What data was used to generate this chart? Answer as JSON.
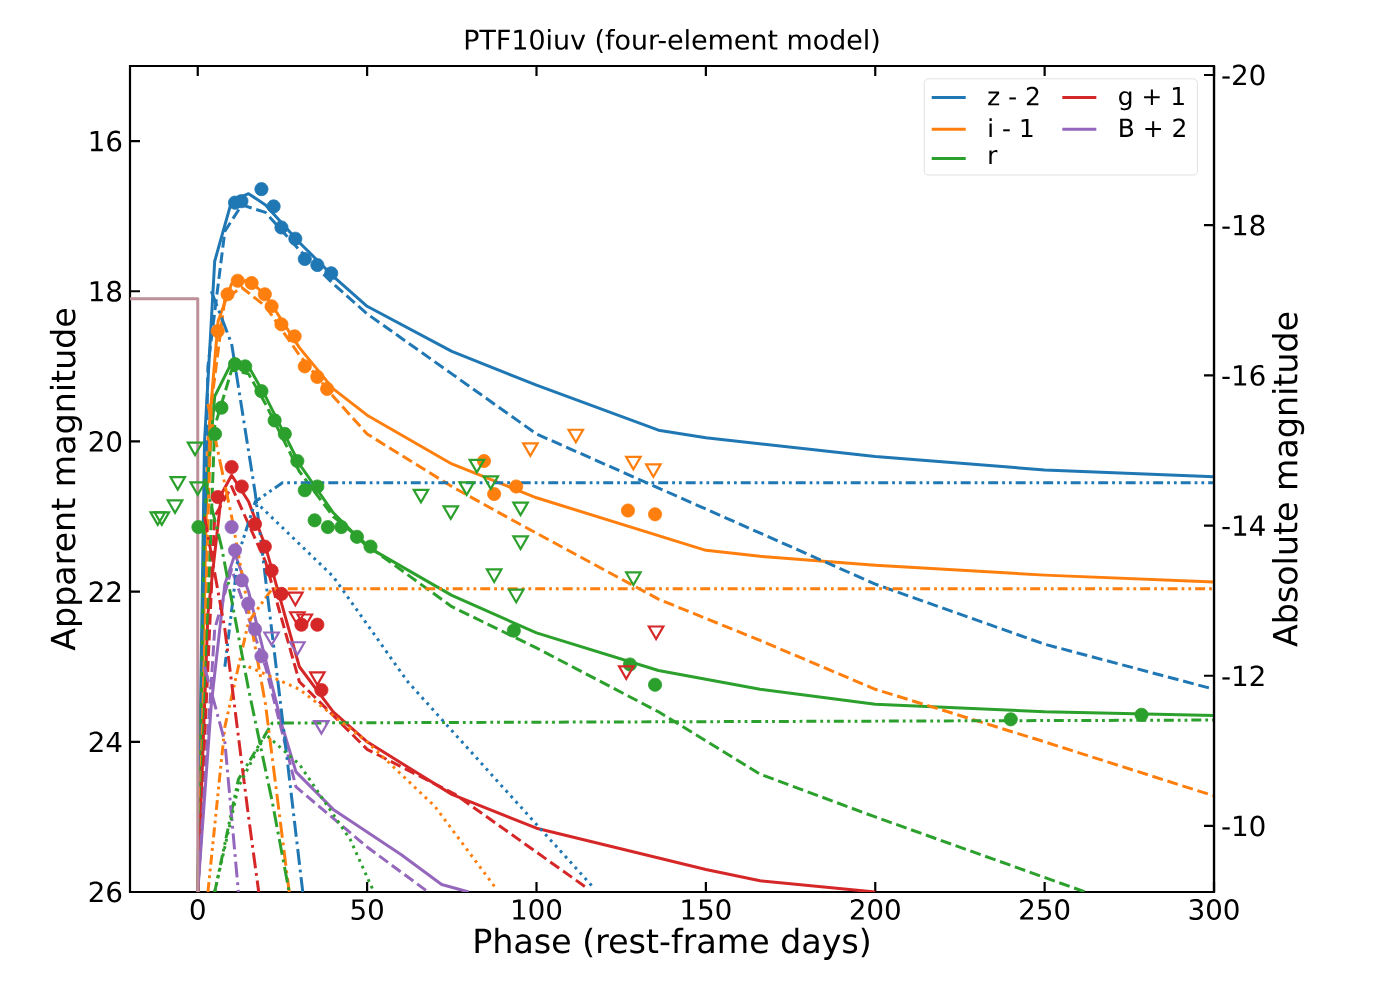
{
  "chart_data": {
    "type": "line",
    "title": "PTF10iuv (four-element model)",
    "xlabel": "Phase (rest-frame days)",
    "ylabel": "Apparent magnitude",
    "y2label": "Absolute magnitude",
    "xlim": [
      -20,
      300
    ],
    "xticks": [
      0,
      50,
      100,
      150,
      200,
      250,
      300
    ],
    "ylim": [
      26,
      15
    ],
    "yticks": [
      16,
      18,
      20,
      22,
      24,
      26
    ],
    "y2lim": [
      -9.12,
      -20.12
    ],
    "y2ticks": [
      -20,
      -18,
      -16,
      -14,
      -12,
      -10
    ],
    "legend": "top right",
    "grid": false,
    "series": [
      {
        "name": "z - 2",
        "line_style": "solid",
        "color": "#1f77b4",
        "x": [
          0,
          2,
          5,
          10,
          15,
          20,
          30,
          40,
          50,
          75,
          100,
          136,
          150,
          200,
          250,
          300
        ],
        "values": [
          26,
          20,
          17.6,
          16.8,
          16.7,
          16.85,
          17.35,
          17.8,
          18.2,
          18.8,
          19.25,
          19.85,
          19.95,
          20.2,
          20.38,
          20.47
        ]
      },
      {
        "name": "i - 1",
        "line_style": "solid",
        "color": "#ff7f0e",
        "x": [
          0,
          3,
          6,
          10,
          15,
          20,
          30,
          40,
          50,
          75,
          100,
          150,
          166,
          200,
          250,
          300
        ],
        "values": [
          26,
          20,
          18.4,
          17.9,
          17.85,
          18.05,
          18.75,
          19.3,
          19.65,
          20.3,
          20.75,
          21.45,
          21.53,
          21.65,
          21.78,
          21.87
        ]
      },
      {
        "name": "r",
        "line_style": "solid",
        "color": "#2ca02c",
        "x": [
          0,
          2,
          5,
          10,
          15,
          20,
          30,
          40,
          50,
          75,
          100,
          136,
          166,
          200,
          250,
          300
        ],
        "values": [
          26,
          21,
          19.4,
          18.95,
          19.0,
          19.4,
          20.3,
          20.95,
          21.4,
          22.05,
          22.55,
          23.05,
          23.3,
          23.5,
          23.6,
          23.65
        ]
      },
      {
        "name": "g + 1",
        "line_style": "solid",
        "color": "#d62728",
        "x": [
          0,
          3,
          7,
          10,
          15,
          20,
          25,
          30,
          40,
          50,
          75,
          100,
          150,
          166,
          200
        ],
        "values": [
          26,
          22.3,
          20.7,
          20.45,
          20.8,
          21.4,
          22.2,
          23.0,
          23.6,
          24.0,
          24.7,
          25.15,
          25.7,
          25.85,
          26.0
        ]
      },
      {
        "name": "B + 2",
        "line_style": "solid",
        "color": "#9467bd",
        "x": [
          0,
          4,
          8,
          11,
          15,
          20,
          25,
          29,
          40,
          60,
          72,
          80
        ],
        "values": [
          26,
          23.5,
          21.9,
          21.5,
          22.0,
          22.9,
          23.8,
          24.4,
          24.9,
          25.5,
          25.9,
          26
        ]
      },
      {
        "type": "line",
        "line_style": "dashed",
        "color": "#1f77b4",
        "x": [
          0,
          3,
          8,
          13,
          20,
          30,
          40,
          50,
          75,
          100,
          150,
          200,
          250,
          300
        ],
        "values": [
          26,
          19,
          17.2,
          16.85,
          16.95,
          17.45,
          17.9,
          18.3,
          19.1,
          19.9,
          20.9,
          21.9,
          22.7,
          23.3
        ]
      },
      {
        "type": "line",
        "line_style": "dashed",
        "color": "#ff7f0e",
        "x": [
          0,
          4,
          8,
          13,
          20,
          30,
          40,
          50,
          75,
          95,
          136,
          166,
          200,
          250,
          300
        ],
        "values": [
          26,
          19.5,
          18.1,
          17.95,
          18.2,
          18.85,
          19.4,
          19.9,
          20.6,
          21.1,
          22.1,
          22.65,
          23.3,
          24.0,
          24.72
        ]
      },
      {
        "type": "line",
        "line_style": "dashed",
        "color": "#2ca02c",
        "x": [
          0,
          5,
          10,
          15,
          20,
          30,
          40,
          52,
          75,
          100,
          136,
          166,
          200,
          262
        ],
        "values": [
          26,
          19.8,
          19.05,
          19.1,
          19.5,
          20.4,
          21.0,
          21.45,
          22.2,
          22.75,
          23.6,
          24.43,
          25.0,
          26
        ]
      },
      {
        "type": "line",
        "line_style": "dashed",
        "color": "#d62728",
        "x": [
          0,
          5,
          10,
          20,
          30,
          50,
          76,
          115
        ],
        "values": [
          26,
          21,
          20.6,
          21.6,
          23.2,
          24.1,
          24.7,
          25.95
        ]
      },
      {
        "type": "line",
        "line_style": "dashed",
        "color": "#9467bd",
        "x": [
          0,
          5,
          10,
          20,
          29,
          50,
          68
        ],
        "values": [
          26,
          22.5,
          21.7,
          23.0,
          24.6,
          25.4,
          26
        ]
      },
      {
        "type": "line",
        "line_style": "dashdotdot",
        "color": "#1f77b4",
        "x": [
          8,
          12,
          17,
          25,
          300
        ],
        "values": [
          23.0,
          21.5,
          20.8,
          20.55,
          20.55
        ]
      },
      {
        "type": "line",
        "line_style": "dashdotdot",
        "color": "#ff7f0e",
        "x": [
          3,
          8,
          15,
          22,
          300
        ],
        "values": [
          26,
          23.8,
          22.4,
          21.96,
          21.96
        ]
      },
      {
        "type": "line",
        "line_style": "dashdotdot",
        "color": "#2ca02c",
        "x": [
          5,
          12,
          22,
          300
        ],
        "values": [
          26,
          24.5,
          23.75,
          23.71
        ]
      },
      {
        "type": "line",
        "line_style": "dashdot",
        "color": "#1f77b4",
        "x": [
          4,
          10,
          17,
          25,
          31
        ],
        "values": [
          18.0,
          18.7,
          20.7,
          23.7,
          26
        ]
      },
      {
        "type": "line",
        "line_style": "dashdot",
        "color": "#ff7f0e",
        "x": [
          3,
          10,
          20,
          27
        ],
        "values": [
          19.5,
          21.0,
          23.5,
          26
        ]
      },
      {
        "type": "line",
        "line_style": "dashdot",
        "color": "#2ca02c",
        "x": [
          2,
          7,
          15,
          22,
          27
        ],
        "values": [
          20.5,
          21.4,
          23.3,
          24.8,
          26
        ]
      },
      {
        "type": "line",
        "line_style": "dashdot",
        "color": "#d62728",
        "x": [
          2,
          8,
          15,
          18
        ],
        "values": [
          21,
          22.5,
          25,
          26
        ]
      },
      {
        "type": "line",
        "line_style": "dashdot",
        "color": "#9467bd",
        "x": [
          2,
          8,
          12
        ],
        "values": [
          23,
          24,
          26
        ]
      },
      {
        "type": "line",
        "line_style": "dotted",
        "color": "#1f77b4",
        "x": [
          17,
          40,
          62,
          90,
          117
        ],
        "values": [
          20.8,
          21.8,
          23.2,
          24.6,
          25.95
        ]
      },
      {
        "type": "line",
        "line_style": "dotted",
        "color": "#ff7f0e",
        "x": [
          15,
          30,
          50,
          70,
          88
        ],
        "values": [
          23.0,
          23.3,
          24.0,
          24.86,
          25.95
        ]
      },
      {
        "type": "line",
        "line_style": "dotted",
        "color": "#2ca02c",
        "x": [
          5,
          12,
          20,
          30,
          45,
          52
        ],
        "values": [
          26,
          24.6,
          23.9,
          24.3,
          25.3,
          26
        ]
      },
      {
        "type": "line",
        "line_style": "solid",
        "color": "#bc8f99",
        "x": [
          -20,
          0,
          0
        ],
        "values": [
          18.1,
          18.1,
          26
        ]
      },
      {
        "type": "scatter",
        "marker": "circle",
        "color": "#1f77b4",
        "x": [
          11,
          12.9,
          18.8,
          22.4,
          24.7,
          28.8,
          31.6,
          35.3,
          39.4
        ],
        "values": [
          16.82,
          16.8,
          16.64,
          16.87,
          17.15,
          17.3,
          17.57,
          17.65,
          17.76
        ]
      },
      {
        "type": "scatter",
        "marker": "circle",
        "color": "#ff7f0e",
        "x": [
          5.9,
          8.8,
          11.8,
          15.9,
          19.8,
          21.8,
          24.7,
          28.6,
          31.6,
          35.3,
          38.2,
          84.5,
          87.5,
          94,
          127,
          135
        ],
        "values": [
          18.53,
          18.04,
          17.86,
          17.89,
          18.04,
          18.2,
          18.44,
          18.6,
          19.0,
          19.14,
          19.3,
          20.26,
          20.7,
          20.6,
          20.92,
          20.97
        ]
      },
      {
        "type": "scatter",
        "marker": "circle",
        "color": "#2ca02c",
        "x": [
          0.2,
          5.1,
          7,
          11,
          14,
          18.8,
          22.7,
          25.7,
          29.4,
          31.6,
          34.5,
          35.3,
          38.4,
          42.4,
          47,
          51,
          93.3,
          127.6,
          135,
          240,
          278.6
        ],
        "values": [
          21.14,
          19.9,
          19.55,
          18.97,
          19.0,
          19.33,
          19.72,
          19.9,
          20.26,
          20.65,
          21.05,
          20.6,
          21.14,
          21.14,
          21.27,
          21.4,
          22.52,
          22.97,
          23.24,
          23.7,
          23.64
        ]
      },
      {
        "type": "scatter",
        "marker": "circle",
        "color": "#d62728",
        "x": [
          5.9,
          10,
          13,
          16.9,
          19.8,
          21.8,
          24.7,
          30.6,
          35.3,
          36.5
        ],
        "values": [
          20.74,
          20.34,
          20.6,
          21.1,
          21.4,
          21.72,
          22.03,
          22.44,
          22.44,
          23.31
        ]
      },
      {
        "type": "scatter",
        "marker": "circle",
        "color": "#9467bd",
        "x": [
          10,
          11,
          13,
          14.9,
          16.9,
          18.8
        ],
        "values": [
          21.14,
          21.45,
          21.85,
          22.16,
          22.5,
          22.86
        ]
      },
      {
        "type": "scatter",
        "marker": "triangle",
        "color": "#2ca02c",
        "x": [
          -11.8,
          -10.6,
          -6.7,
          -5.9,
          -0.8,
          0,
          65.9,
          74.7,
          79.4,
          82.4,
          86.5,
          95.3,
          95.3,
          87.5,
          94,
          128.6
        ],
        "values": [
          21.0,
          21.0,
          20.84,
          20.53,
          20.07,
          20.6,
          20.7,
          20.92,
          20.6,
          20.3,
          20.52,
          20.87,
          21.32,
          21.76,
          22.03,
          21.8
        ]
      },
      {
        "type": "scatter",
        "marker": "triangle",
        "color": "#ff7f0e",
        "x": [
          98.2,
          111.6,
          128.6,
          134.5
        ],
        "values": [
          20.08,
          19.9,
          20.26,
          20.36
        ]
      },
      {
        "type": "scatter",
        "marker": "triangle",
        "color": "#d62728",
        "x": [
          28.8,
          29.4,
          31.6,
          35.3,
          126.5,
          135.3
        ],
        "values": [
          22.07,
          22.33,
          22.36,
          23.13,
          23.05,
          22.52
        ]
      },
      {
        "type": "scatter",
        "marker": "triangle",
        "color": "#9467bd",
        "x": [
          21.8,
          29.4,
          36.5
        ],
        "values": [
          22.6,
          22.73,
          23.78
        ]
      }
    ]
  }
}
